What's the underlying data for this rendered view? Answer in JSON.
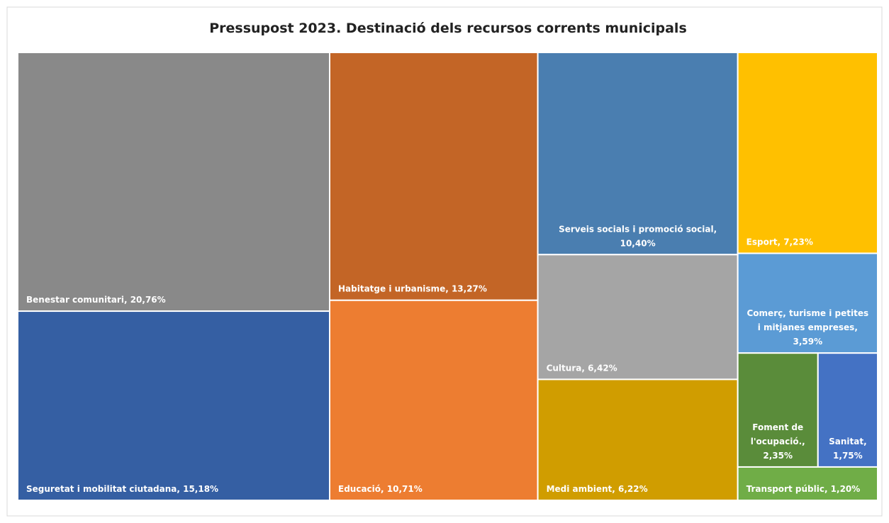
{
  "chart_data": {
    "type": "treemap",
    "title": "Pressupost 2023. Destinació dels recursos corrents municipals",
    "labels": [
      "Benestar comunitari, 20,76%",
      "Seguretat i mobilitat ciutadana, 15,18%",
      "Habitatge i urbanisme, 13,27%",
      "Educació, 10,71%",
      "Serveis socials i promoció social, 10,40%",
      "Cultura, 6,42%",
      "Medi ambient, 6,22%",
      "Esport, 7,23%",
      "Comerç, turisme i petites i mitjanes empreses, 3,59%",
      "Foment de l'ocupació., 2,35%",
      "Sanitat, 1,75%",
      "Transport públic, 1,20%"
    ],
    "values": [
      20.76,
      15.18,
      13.27,
      10.71,
      10.4,
      6.42,
      6.22,
      7.23,
      3.59,
      2.35,
      1.75,
      1.2
    ],
    "colors": [
      "#898989",
      "#355fa3",
      "#c36526",
      "#ed7d31",
      "#4a7eb0",
      "#a5a5a5",
      "#d09d00",
      "#ffc000",
      "#5b9bd5",
      "#5a8c3a",
      "#4472c4",
      "#70ad47"
    ]
  }
}
